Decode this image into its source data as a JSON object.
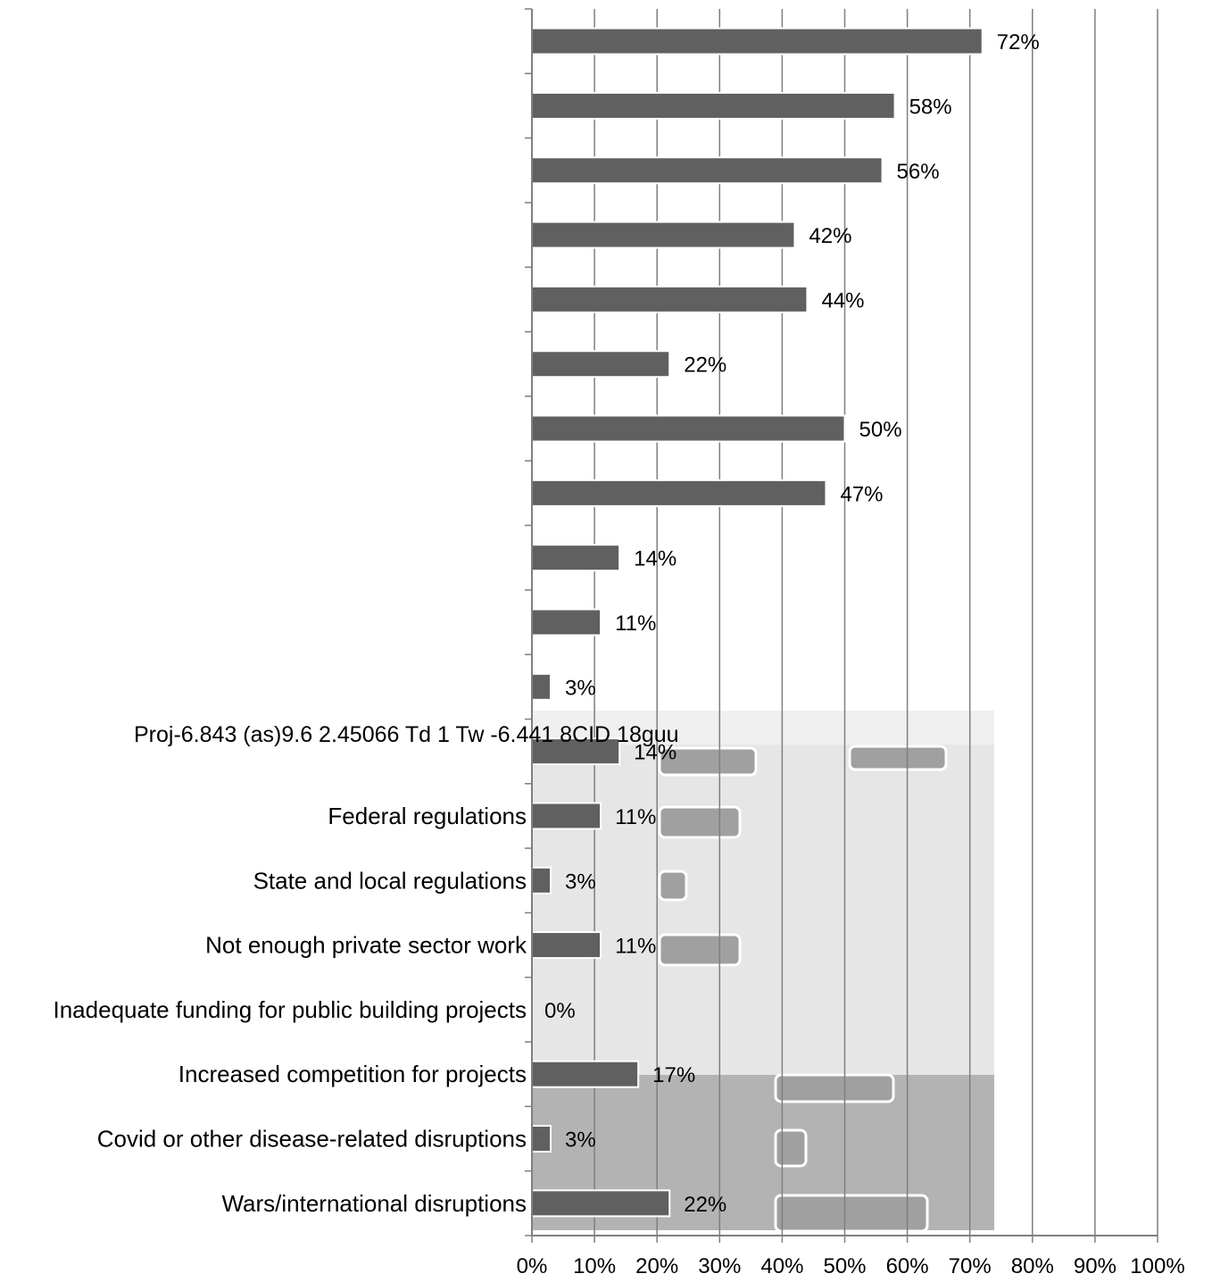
{
  "chart_data": {
    "type": "bar",
    "orientation": "horizontal",
    "title": "",
    "xlabel": "",
    "ylabel": "",
    "xlim": [
      0,
      100
    ],
    "grid": true,
    "legend": "none",
    "x_ticks": [
      "0%",
      "10%",
      "20%",
      "30%",
      "40%",
      "50%",
      "60%",
      "70%",
      "80%",
      "90%",
      "100%"
    ],
    "categories": [
      "",
      "",
      "",
      "",
      "",
      "",
      "",
      "",
      "",
      "",
      "",
      "",
      "Federal regulations",
      "State and local regulations",
      "Not enough private sector work",
      "Inadequate funding for public building projects",
      "Increased competition for projects",
      "Covid or other disease-related disruptions",
      "Wars/international disruptions"
    ],
    "values": [
      72,
      58,
      56,
      42,
      44,
      22,
      50,
      47,
      14,
      11,
      3,
      14,
      11,
      3,
      11,
      0,
      17,
      3,
      22
    ],
    "value_labels": [
      "72%",
      "58%",
      "56%",
      "42%",
      "44%",
      "22%",
      "50%",
      "47%",
      "14%",
      "11%",
      "3%",
      "14%",
      "11%",
      "3%",
      "11%",
      "0%",
      "17%",
      "3%",
      "22%"
    ],
    "stray_text": "Proj-6.843 (as)9.6  2.45066 Td 1 Tw -6.441 8CID 18guu",
    "colors": {
      "bar": "#606060",
      "bar_edge": "#ffffff",
      "gridline": "#7f7f7f",
      "artifact_light": "#e6e6e6",
      "artifact_dark": "#b3b3b3",
      "artifact_bar": "#a0a0a0"
    }
  }
}
